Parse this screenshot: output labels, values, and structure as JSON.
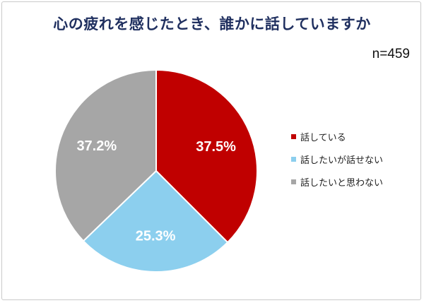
{
  "chart_data": {
    "type": "pie",
    "title": "心の疲れを感じたとき、誰かに話していますか",
    "sample_size": "n=459",
    "categories": [
      "話している",
      "話したいが話せない",
      "話したいと思わない"
    ],
    "values": [
      37.5,
      25.3,
      37.2
    ],
    "value_labels": [
      "37.5%",
      "25.3%",
      "37.2%"
    ],
    "colors": [
      "#c00000",
      "#8ccfee",
      "#a6a6a6"
    ],
    "start_angle": "12 o'clock, clockwise",
    "legend_position": "right"
  }
}
